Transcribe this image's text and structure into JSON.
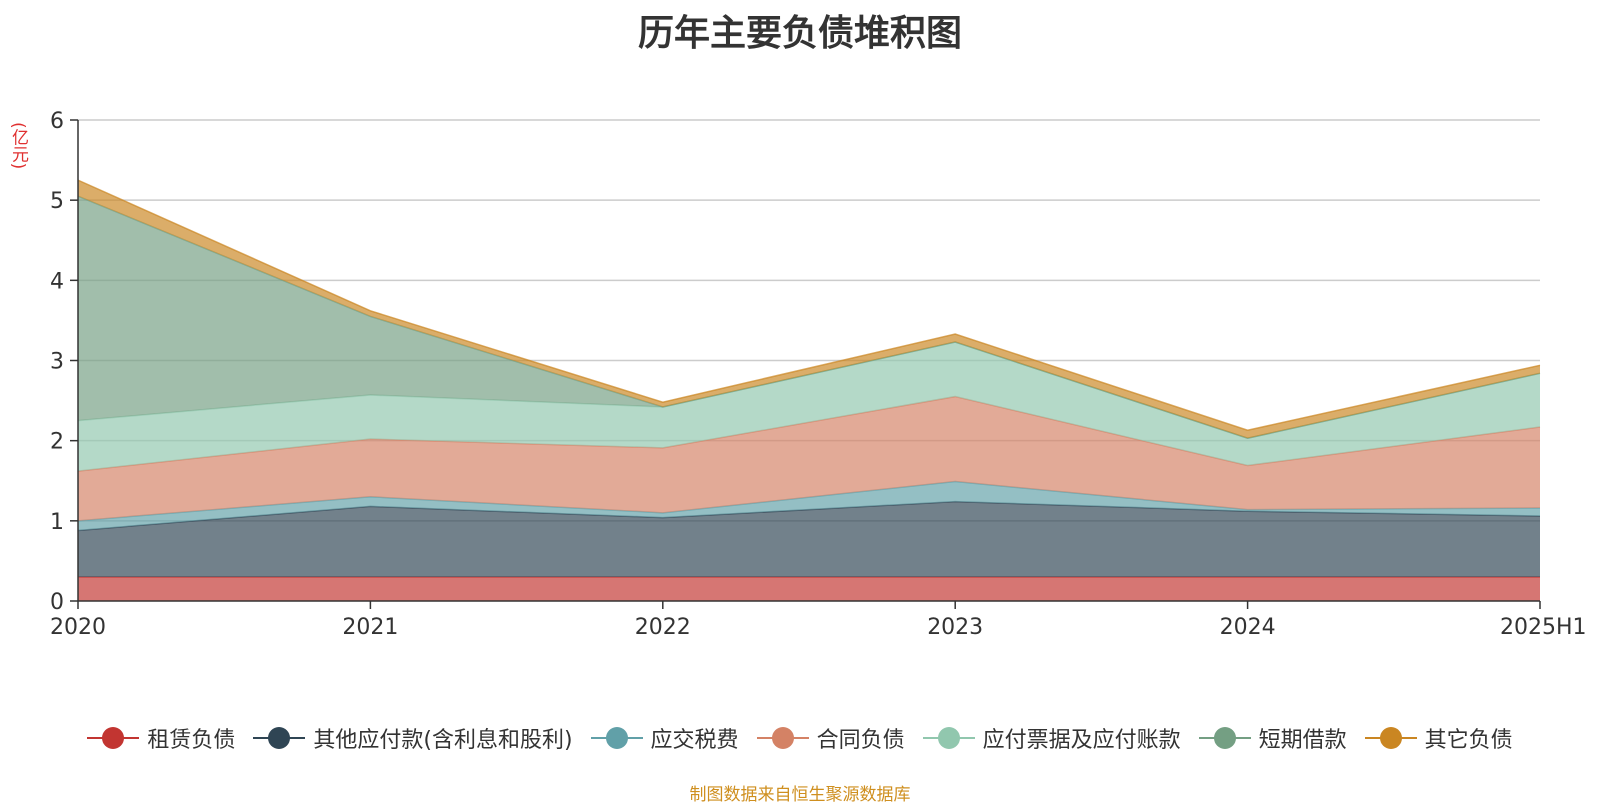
{
  "chart_data": {
    "type": "area",
    "stacked": true,
    "title": "历年主要负债堆积图",
    "unit_label": "(亿元)",
    "categories": [
      "2020",
      "2021",
      "2022",
      "2023",
      "2024",
      "2025H1"
    ],
    "ylim": [
      0,
      6
    ],
    "yticks": [
      0,
      1,
      2,
      3,
      4,
      5,
      6
    ],
    "grid": true,
    "legend_position": "bottom",
    "series": [
      {
        "name": "租赁负债",
        "color": "#c23531",
        "values": [
          0.3,
          0.3,
          0.3,
          0.3,
          0.3,
          0.3
        ]
      },
      {
        "name": "其他应付款(含利息和股利)",
        "color": "#2f4554",
        "values": [
          0.58,
          0.88,
          0.74,
          0.94,
          0.82,
          0.76
        ]
      },
      {
        "name": "应交税费",
        "color": "#61a0a8",
        "values": [
          0.12,
          0.12,
          0.06,
          0.25,
          0.02,
          0.1
        ]
      },
      {
        "name": "合同负债",
        "color": "#d48265",
        "values": [
          0.62,
          0.72,
          0.81,
          1.06,
          0.55,
          1.01
        ]
      },
      {
        "name": "应付票据及应付账款",
        "color": "#91c7ae",
        "values": [
          0.63,
          0.55,
          0.51,
          0.68,
          0.34,
          0.67
        ]
      },
      {
        "name": "短期借款",
        "color": "#749f83",
        "values": [
          2.8,
          0.98,
          0.0,
          0.0,
          0.0,
          0.0
        ]
      },
      {
        "name": "其它负债",
        "color": "#ca8622",
        "values": [
          0.2,
          0.07,
          0.06,
          0.1,
          0.1,
          0.1
        ]
      }
    ],
    "source_note": "制图数据来自恒生聚源数据库"
  }
}
